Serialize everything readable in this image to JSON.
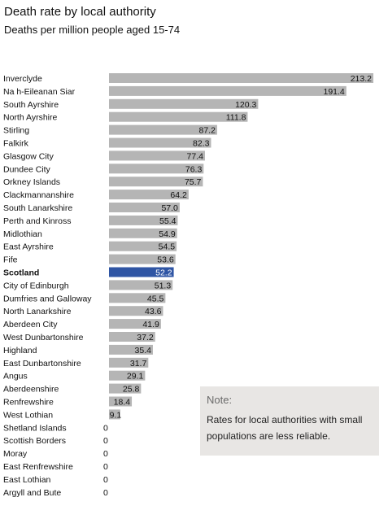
{
  "title": "Death rate by local authority",
  "subtitle": "Deaths per million people aged 15-74",
  "note": {
    "title": "Note:",
    "text": "Rates for local authorities with small populations are less reliable."
  },
  "colors": {
    "bar": "#b5b5b5",
    "highlight": "#2f55a4"
  },
  "chart_data": {
    "type": "bar",
    "orientation": "horizontal",
    "title": "Death rate by local authority",
    "subtitle": "Deaths per million people aged 15-74",
    "highlight": "Scotland",
    "xlim": [
      0,
      213.2
    ],
    "grid": false,
    "categories": [
      "Inverclyde",
      "Na h-Eileanan Siar",
      "South Ayrshire",
      "North Ayrshire",
      "Stirling",
      "Falkirk",
      "Glasgow City",
      "Dundee City",
      "Orkney Islands",
      "Clackmannanshire",
      "South Lanarkshire",
      "Perth and Kinross",
      "Midlothian",
      "East Ayrshire",
      "Fife",
      "Scotland",
      "City of Edinburgh",
      "Dumfries and Galloway",
      "North Lanarkshire",
      "Aberdeen City",
      "West Dunbartonshire",
      "Highland",
      "East Dunbartonshire",
      "Angus",
      "Aberdeenshire",
      "Renfrewshire",
      "West Lothian",
      "Shetland Islands",
      "Scottish Borders",
      "Moray",
      "East Renfrewshire",
      "East Lothian",
      "Argyll and Bute"
    ],
    "values": [
      213.2,
      191.4,
      120.3,
      111.8,
      87.2,
      82.3,
      77.4,
      76.3,
      75.7,
      64.2,
      57.0,
      55.4,
      54.9,
      54.5,
      53.6,
      52.2,
      51.3,
      45.5,
      43.6,
      41.9,
      37.2,
      35.4,
      31.7,
      29.1,
      25.8,
      18.4,
      9.1,
      0,
      0,
      0,
      0,
      0,
      0
    ],
    "value_labels": [
      "213.2",
      "191.4",
      "120.3",
      "111.8",
      "87.2",
      "82.3",
      "77.4",
      "76.3",
      "75.7",
      "64.2",
      "57.0",
      "55.4",
      "54.9",
      "54.5",
      "53.6",
      "52.2",
      "51.3",
      "45.5",
      "43.6",
      "41.9",
      "37.2",
      "35.4",
      "31.7",
      "29.1",
      "25.8",
      "18.4",
      "9.1",
      "0",
      "0",
      "0",
      "0",
      "0",
      "0"
    ]
  }
}
